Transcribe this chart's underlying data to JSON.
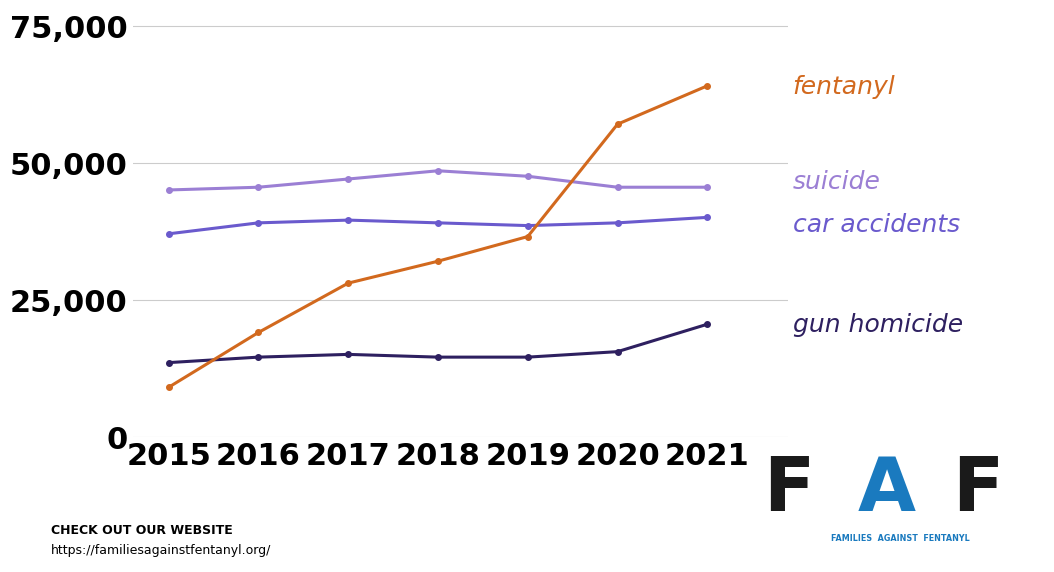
{
  "years": [
    2015,
    2016,
    2017,
    2018,
    2019,
    2020,
    2021
  ],
  "fentanyl": [
    9000,
    19000,
    28000,
    32000,
    36500,
    57000,
    64000
  ],
  "suicide": [
    45000,
    45500,
    47000,
    48500,
    47500,
    45500,
    45500
  ],
  "car_accidents": [
    37000,
    39000,
    39500,
    39000,
    38500,
    39000,
    40000
  ],
  "gun_homicide": [
    13500,
    14500,
    15000,
    14500,
    14500,
    15500,
    20500
  ],
  "fentanyl_color": "#d2691e",
  "suicide_color": "#9b7fd4",
  "car_accidents_color": "#6a5acd",
  "gun_homicide_color": "#2e2060",
  "background_color": "#ffffff",
  "ylim": [
    0,
    78000
  ],
  "yticks": [
    0,
    25000,
    50000,
    75000
  ],
  "ytick_labels": [
    "0",
    "25,000",
    "50,000",
    "75,000"
  ],
  "grid_color": "#cccccc",
  "label_fentanyl": "fentanyl",
  "label_suicide": "suicide",
  "label_car_accidents": "car accidents",
  "label_gun_homicide": "gun homicide",
  "footer_bold": "CHECK OUT OUR WEBSITE",
  "footer_url": "https://familiesagainstfentanyl.org/",
  "marker_style": "o",
  "marker_size": 4,
  "line_width": 2.2,
  "faf_F_color": "#1a1a1a",
  "faf_A_color": "#1a7abf",
  "faf_sub_color": "#1a7abf",
  "faf_sub_text": "FAMILIES  AGAINST  FENTANYL"
}
